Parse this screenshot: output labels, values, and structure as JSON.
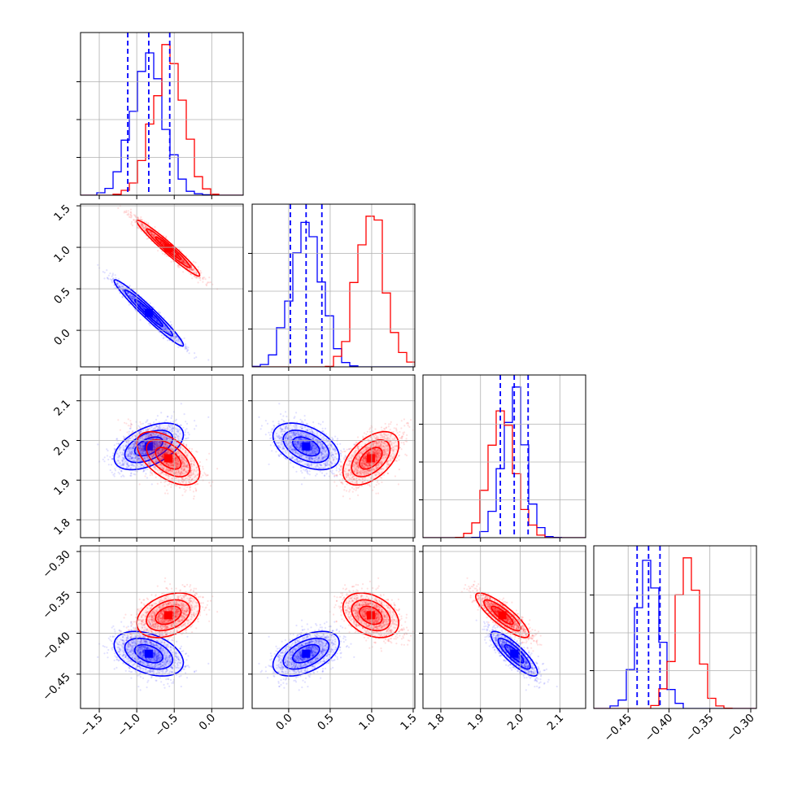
{
  "chart_data": {
    "type": "scatter",
    "title": "",
    "description_type": "corner-plot",
    "series": [
      {
        "name": "",
        "color": "#0000ff"
      },
      {
        "name": "",
        "color": "#ff0000"
      }
    ],
    "parameters": [
      {
        "range": [
          -1.75,
          0.42
        ],
        "ticks": [
          -1.5,
          -1.0,
          -0.5,
          0.0
        ],
        "tick_labels": [
          "−1.5",
          "−1.0",
          "−0.5",
          "0.0"
        ]
      },
      {
        "range": [
          -0.44,
          1.52
        ],
        "ticks": [
          0.0,
          0.5,
          1.0,
          1.5
        ],
        "tick_labels": [
          "0.0",
          "0.5",
          "1.0",
          "1.5"
        ]
      },
      {
        "range": [
          1.755,
          2.165
        ],
        "ticks": [
          1.8,
          1.9,
          2.0,
          2.1
        ],
        "tick_labels": [
          "1.8",
          "1.9",
          "2.0",
          "2.1"
        ]
      },
      {
        "range": [
          -0.492,
          -0.293
        ],
        "ticks": [
          -0.45,
          -0.4,
          -0.35,
          -0.3
        ],
        "tick_labels": [
          "−0.45",
          "−0.40",
          "−0.35",
          "−0.30"
        ]
      }
    ],
    "posteriors": [
      {
        "color": "#0000ff",
        "mean": [
          -0.84,
          0.21,
          1.985,
          -0.425
        ],
        "sd": [
          0.22,
          0.19,
          0.028,
          0.013
        ],
        "corr": [
          [
            1,
            -0.97,
            0.5,
            -0.4
          ],
          [
            -0.97,
            1,
            -0.45,
            0.5
          ],
          [
            0.5,
            -0.45,
            1,
            -0.85
          ],
          [
            -0.4,
            0.5,
            -0.85,
            1
          ]
        ]
      },
      {
        "color": "#ff0000",
        "mean": [
          -0.58,
          0.99,
          1.955,
          -0.378
        ],
        "sd": [
          0.2,
          0.16,
          0.032,
          0.013
        ],
        "corr": [
          [
            1,
            -0.97,
            -0.55,
            0.35
          ],
          [
            -0.97,
            1,
            0.5,
            -0.35
          ],
          [
            -0.55,
            0.5,
            1,
            -0.85
          ],
          [
            0.35,
            -0.35,
            -0.85,
            1
          ]
        ]
      }
    ],
    "quantile_lines": [
      {
        "parameter": 0,
        "color": "#0000ff",
        "values": [
          -1.12,
          -0.84,
          -0.56
        ]
      },
      {
        "parameter": 1,
        "color": "#0000ff",
        "values": [
          0.02,
          0.21,
          0.4
        ]
      },
      {
        "parameter": 2,
        "color": "#0000ff",
        "values": [
          1.95,
          1.985,
          2.02
        ]
      },
      {
        "parameter": 3,
        "color": "#0000ff",
        "values": [
          -0.439,
          -0.425,
          -0.411
        ]
      }
    ],
    "grid": true,
    "legend": "none"
  }
}
